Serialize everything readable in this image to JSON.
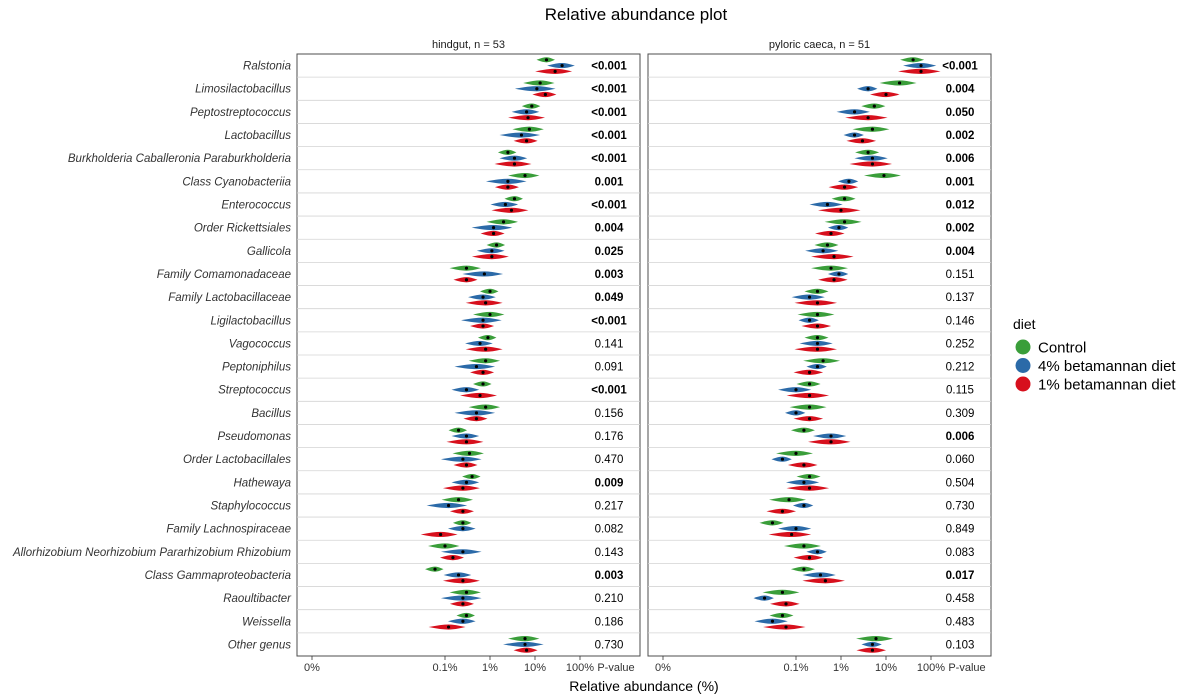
{
  "chart_data": {
    "type": "violin",
    "title": "Relative abundance plot",
    "xlabel": "Relative abundance (%)",
    "x_scale": "pseudo-log",
    "x_ticks": [
      "0%",
      "0.1%",
      "1%",
      "10%",
      "100%"
    ],
    "pvalue_header": "P-value",
    "legend": {
      "title": "diet",
      "position": "right",
      "entries": [
        {
          "name": "Control",
          "color": "#3a9e3a"
        },
        {
          "name": "4% betamannan diet",
          "color": "#2b6aa8"
        },
        {
          "name": "1% betamannan diet",
          "color": "#d7101d"
        }
      ]
    },
    "genera": [
      "Ralstonia",
      "Limosilactobacillus",
      "Peptostreptococcus",
      "Lactobacillus",
      "Burkholderia Caballeronia Paraburkholderia",
      "Class Cyanobacteriia",
      "Enterococcus",
      "Order Rickettsiales",
      "Gallicola",
      "Family Comamonadaceae",
      "Family Lactobacillaceae",
      "Ligilactobacillus",
      "Vagococcus",
      "Peptoniphilus",
      "Streptococcus",
      "Bacillus",
      "Pseudomonas",
      "Order Lactobacillales",
      "Hathewaya",
      "Staphylococcus",
      "Family Lachnospiraceae",
      "Allorhizobium Neorhizobium Pararhizobium Rhizobium",
      "Class Gammaproteobacteria",
      "Raoultibacter",
      "Weissella",
      "Other genus"
    ],
    "facets": [
      {
        "label": "hindgut, n = 53",
        "pvalues": [
          "<0.001",
          "<0.001",
          "<0.001",
          "<0.001",
          "<0.001",
          "0.001",
          "<0.001",
          "0.004",
          "0.025",
          "0.003",
          "0.049",
          "<0.001",
          "0.141",
          "0.091",
          "<0.001",
          "0.156",
          "0.176",
          "0.470",
          "0.009",
          "0.217",
          "0.082",
          "0.143",
          "0.003",
          "0.210",
          "0.186",
          "0.730"
        ],
        "significant": [
          true,
          true,
          true,
          true,
          true,
          true,
          true,
          true,
          true,
          true,
          true,
          true,
          false,
          false,
          true,
          false,
          false,
          false,
          true,
          false,
          false,
          false,
          true,
          false,
          false,
          false
        ],
        "medians_percent": [
          [
            18,
            40,
            28
          ],
          [
            13,
            11,
            17
          ],
          [
            8.5,
            6.5,
            7
          ],
          [
            7.5,
            5,
            6.5
          ],
          [
            2.5,
            3.5,
            3.5
          ],
          [
            6,
            2.5,
            2.5
          ],
          [
            3.5,
            2.2,
            3
          ],
          [
            2,
            1.2,
            1.2
          ],
          [
            1.4,
            1.1,
            1.1
          ],
          [
            0.3,
            0.75,
            0.3
          ],
          [
            1,
            0.7,
            0.8
          ],
          [
            1,
            0.7,
            0.7
          ],
          [
            0.9,
            0.6,
            0.8
          ],
          [
            0.8,
            0.5,
            0.7
          ],
          [
            0.7,
            0.3,
            0.6
          ],
          [
            0.8,
            0.5,
            0.5
          ],
          [
            0.2,
            0.3,
            0.3
          ],
          [
            0.35,
            0.25,
            0.3
          ],
          [
            0.4,
            0.3,
            0.25
          ],
          [
            0.2,
            0.12,
            0.25
          ],
          [
            0.25,
            0.25,
            0.08
          ],
          [
            0.1,
            0.25,
            0.15
          ],
          [
            0.06,
            0.2,
            0.25
          ],
          [
            0.3,
            0.25,
            0.25
          ],
          [
            0.3,
            0.25,
            0.12
          ],
          [
            6,
            6,
            6.5
          ]
        ]
      },
      {
        "label": "pyloric caeca, n = 51",
        "pvalues": [
          "<0.001",
          "0.004",
          "0.050",
          "0.002",
          "0.006",
          "0.001",
          "0.012",
          "0.002",
          "0.004",
          "0.151",
          "0.137",
          "0.146",
          "0.252",
          "0.212",
          "0.115",
          "0.309",
          "0.006",
          "0.060",
          "0.504",
          "0.730",
          "0.849",
          "0.083",
          "0.017",
          "0.458",
          "0.483",
          "0.103"
        ],
        "significant": [
          true,
          true,
          true,
          true,
          true,
          true,
          true,
          true,
          true,
          false,
          false,
          false,
          false,
          false,
          false,
          false,
          true,
          false,
          false,
          false,
          false,
          false,
          true,
          false,
          false,
          false
        ],
        "medians_percent": [
          [
            40,
            60,
            60
          ],
          [
            20,
            4,
            10
          ],
          [
            5.5,
            2,
            4
          ],
          [
            5,
            2,
            3
          ],
          [
            4,
            5,
            5
          ],
          [
            9,
            1.5,
            1.2
          ],
          [
            1.2,
            0.5,
            1
          ],
          [
            1.2,
            0.9,
            0.6
          ],
          [
            0.5,
            0.4,
            0.7
          ],
          [
            0.6,
            0.9,
            0.7
          ],
          [
            0.3,
            0.2,
            0.3
          ],
          [
            0.3,
            0.2,
            0.3
          ],
          [
            0.3,
            0.3,
            0.3
          ],
          [
            0.4,
            0.3,
            0.2
          ],
          [
            0.2,
            0.1,
            0.2
          ],
          [
            0.2,
            0.1,
            0.2
          ],
          [
            0.15,
            0.6,
            0.6
          ],
          [
            0.1,
            0.05,
            0.15
          ],
          [
            0.2,
            0.15,
            0.2
          ],
          [
            0.07,
            0.15,
            0.05
          ],
          [
            0.03,
            0.1,
            0.08
          ],
          [
            0.15,
            0.3,
            0.2
          ],
          [
            0.15,
            0.35,
            0.45
          ],
          [
            0.05,
            0.02,
            0.06
          ],
          [
            0.05,
            0.03,
            0.06
          ],
          [
            6,
            5,
            5
          ]
        ]
      }
    ]
  }
}
